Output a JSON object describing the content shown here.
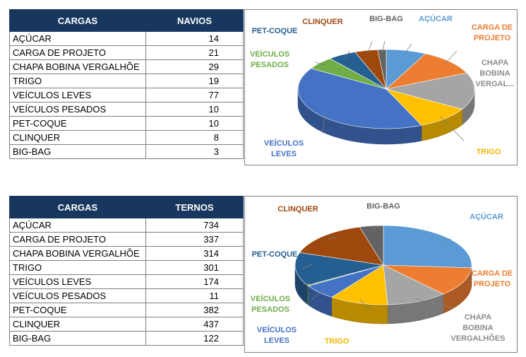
{
  "tables": [
    {
      "header": [
        "CARGAS",
        "NAVIOS"
      ],
      "rows": [
        {
          "label": "AÇÚCAR",
          "value": "14"
        },
        {
          "label": "CARGA DE PROJETO",
          "value": "21"
        },
        {
          "label": "CHAPA BOBINA VERGALHÕE",
          "value": "29"
        },
        {
          "label": "TRIGO",
          "value": "19"
        },
        {
          "label": "VEÍCULOS LEVES",
          "value": "77"
        },
        {
          "label": "VEÍCULOS PESADOS",
          "value": "10"
        },
        {
          "label": "PET-COQUE",
          "value": "10"
        },
        {
          "label": "CLINQUER",
          "value": "8"
        },
        {
          "label": "BIG-BAG",
          "value": "3"
        }
      ]
    },
    {
      "header": [
        "CARGAS",
        "TERNOS"
      ],
      "rows": [
        {
          "label": "AÇÚCAR",
          "value": "734"
        },
        {
          "label": "CARGA DE PROJETO",
          "value": "337"
        },
        {
          "label": "CHAPA BOBINA VERGALHÕE",
          "value": "314"
        },
        {
          "label": "TRIGO",
          "value": "301"
        },
        {
          "label": "VEÍCULOS LEVES",
          "value": "174"
        },
        {
          "label": "VEÍCULOS PESADOS",
          "value": "11"
        },
        {
          "label": "PET-COQUE",
          "value": "382"
        },
        {
          "label": "CLINQUER",
          "value": "437"
        },
        {
          "label": "BIG-BAG",
          "value": "122"
        }
      ]
    }
  ],
  "chart_data": [
    {
      "type": "pie",
      "categories": [
        "AÇÚCAR",
        "CARGA DE PROJETO",
        "CHAPA BOBINA VERGALHÕE",
        "TRIGO",
        "VEÍCULOS LEVES",
        "VEÍCULOS PESADOS",
        "PET-COQUE",
        "CLINQUER",
        "BIG-BAG"
      ],
      "values": [
        14,
        21,
        29,
        19,
        77,
        10,
        10,
        8,
        3
      ],
      "colors": [
        "#5b9bd5",
        "#ed7d31",
        "#a5a5a5",
        "#ffc000",
        "#4472c4",
        "#70ad47",
        "#255e91",
        "#9e480e",
        "#636363"
      ],
      "label_lines": [
        [
          "AÇÚCAR"
        ],
        [
          "CARGA DE",
          "PROJETO"
        ],
        [
          "CHAPA",
          "BOBINA",
          "VERGAL..."
        ],
        [
          "TRIGO"
        ],
        [
          "VEÍCULOS",
          "LEVES"
        ],
        [
          "VEÍCULOS",
          "PESADOS"
        ],
        [
          "PET-COQUE"
        ],
        [
          "CLINQUER"
        ],
        [
          "BIG-BAG"
        ]
      ]
    },
    {
      "type": "pie",
      "categories": [
        "AÇÚCAR",
        "CARGA DE PROJETO",
        "CHAPA BOBINA VERGALHÕES",
        "TRIGO",
        "VEÍCULOS LEVES",
        "VEÍCULOS PESADOS",
        "PET-COQUE",
        "CLINQUER",
        "BIG-BAG"
      ],
      "values": [
        734,
        337,
        314,
        301,
        174,
        11,
        382,
        437,
        122
      ],
      "colors": [
        "#5b9bd5",
        "#ed7d31",
        "#a5a5a5",
        "#ffc000",
        "#4472c4",
        "#70ad47",
        "#255e91",
        "#9e480e",
        "#636363"
      ],
      "label_lines": [
        [
          "AÇÚCAR"
        ],
        [
          "CARGA DE",
          "PROJETO"
        ],
        [
          "CHAPA",
          "BOBINA",
          "VERGALHÕES"
        ],
        [
          "TRIGO"
        ],
        [
          "VEÍCULOS",
          "LEVES"
        ],
        [
          "VEÍCULOS",
          "PESADOS"
        ],
        [
          "PET-COQUE"
        ],
        [
          "CLINQUER"
        ],
        [
          "BIG-BAG"
        ]
      ]
    }
  ]
}
